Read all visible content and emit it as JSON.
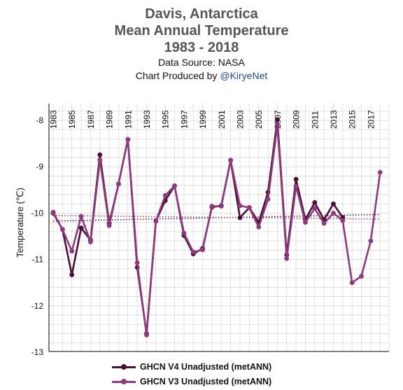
{
  "colors": {
    "v4": "#4a1038",
    "v3": "#8e3a7e",
    "grid": "#d9d9d9",
    "axis": "#000000"
  },
  "header": {
    "title_line1": "Davis, Antarctica",
    "title_line2": "Mean Annual Temperature",
    "title_line3": "1983 - 2018",
    "source": "Data Source: NASA",
    "credit_prefix": "Chart Produced by ",
    "credit_handle": "@KiryeNet"
  },
  "legend": {
    "v4_label": "GHCN V4 Unadjusted (metANN)",
    "v3_label": "GHCN V3 Unadjusted (metANN)"
  },
  "chart_data": {
    "type": "line",
    "title": "Davis, Antarctica Mean Annual Temperature 1983 - 2018",
    "xlabel": "",
    "ylabel": "Temperature (℃)",
    "x": [
      1983,
      1984,
      1985,
      1986,
      1987,
      1988,
      1989,
      1990,
      1991,
      1992,
      1993,
      1994,
      1995,
      1996,
      1997,
      1998,
      1999,
      2000,
      2001,
      2002,
      2003,
      2004,
      2005,
      2006,
      2007,
      2008,
      2009,
      2010,
      2011,
      2012,
      2013,
      2014,
      2015,
      2016,
      2017,
      2018
    ],
    "x_tick_labels": [
      "1983",
      "1985",
      "1987",
      "1989",
      "1991",
      "1993",
      "1995",
      "1997",
      "1999",
      "2001",
      "2003",
      "2005",
      "2007",
      "2009",
      "2011",
      "2013",
      "2015",
      "2017"
    ],
    "xlim": [
      1983,
      2018
    ],
    "ylim": [
      -13,
      -7.6
    ],
    "y_ticks": [
      -8,
      -9,
      -10,
      -11,
      -12,
      -13
    ],
    "grid": true,
    "legend_position": "bottom",
    "series": [
      {
        "name": "GHCN V4 Unadjusted (metANN)",
        "values": [
          -10.0,
          -10.35,
          -11.33,
          -10.32,
          -10.58,
          -8.74,
          -10.22,
          -9.37,
          -8.41,
          -11.17,
          -12.6,
          -10.17,
          -9.73,
          -9.41,
          -10.48,
          -10.88,
          -10.76,
          -9.87,
          -9.84,
          -8.86,
          -10.1,
          -9.88,
          -10.2,
          -9.55,
          -7.98,
          -10.9,
          -9.27,
          -10.14,
          -9.77,
          -10.14,
          -9.8,
          -10.09,
          null,
          null,
          null,
          null
        ]
      },
      {
        "name": "GHCN V3 Unadjusted (metANN)",
        "values": [
          -9.98,
          -10.35,
          -10.82,
          -10.07,
          -10.62,
          -8.85,
          -10.27,
          -9.37,
          -8.41,
          -11.07,
          -12.63,
          -10.17,
          -9.62,
          -9.41,
          -10.43,
          -10.84,
          -10.79,
          -9.85,
          -9.85,
          -8.86,
          -9.84,
          -9.88,
          -10.3,
          -9.7,
          -8.1,
          -10.98,
          -9.42,
          -10.2,
          -9.9,
          -10.22,
          -10.0,
          -10.16,
          -11.5,
          -11.36,
          -10.6,
          -9.12
        ]
      }
    ],
    "trendlines": [
      {
        "series": "GHCN V4 Unadjusted (metANN)",
        "x": [
          1983,
          2018
        ],
        "y": [
          -10.17,
          -10.03
        ]
      },
      {
        "series": "GHCN V3 Unadjusted (metANN)",
        "x": [
          1983,
          2018
        ],
        "y": [
          -10.05,
          -10.13
        ]
      }
    ]
  }
}
